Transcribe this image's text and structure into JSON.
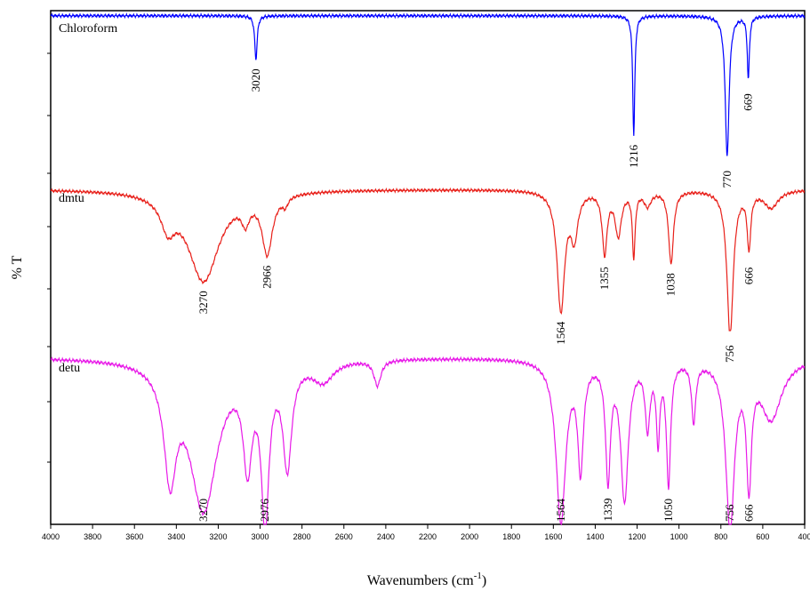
{
  "chart_data": {
    "type": "line",
    "xlabel": "Wavenumbers (cm",
    "xlabel_sup": "-1",
    "ylabel": "% T",
    "xlim": [
      4000,
      400
    ],
    "x_reversed": true,
    "x_ticks": [
      4000,
      3800,
      3600,
      3400,
      3200,
      3000,
      2800,
      2600,
      2400,
      2200,
      2000,
      1800,
      1600,
      1400,
      1200,
      1000,
      800,
      600,
      400
    ],
    "x_tick_labels": [
      "4000",
      "3800",
      "3600",
      "3400",
      "3200",
      "3000",
      "2800",
      "2600",
      "2400",
      "2200",
      "2000",
      "1800",
      "1600",
      "1400",
      "1200",
      "1000",
      "800",
      "600",
      "400"
    ],
    "grid": false,
    "series": [
      {
        "name": "Chloroform",
        "color": "#0000ff",
        "ylim": [
          0,
          100
        ],
        "baseline": 99,
        "peaks": [
          {
            "x": 3020,
            "depth": 28,
            "width": 7
          },
          {
            "x": 1216,
            "depth": 76,
            "width": 6
          },
          {
            "x": 770,
            "depth": 90,
            "width": 11
          },
          {
            "x": 669,
            "depth": 40,
            "width": 6
          }
        ],
        "annotations": [
          {
            "x": 3020,
            "label": "3020"
          },
          {
            "x": 1216,
            "label": "1216"
          },
          {
            "x": 770,
            "label": "770"
          },
          {
            "x": 669,
            "label": "669"
          }
        ]
      },
      {
        "name": "dmtu",
        "color": "#e8201a",
        "ylim": [
          0,
          100
        ],
        "baseline": 97,
        "peaks": [
          {
            "x": 3440,
            "depth": 20,
            "width": 40
          },
          {
            "x": 3270,
            "depth": 62,
            "width": 90
          },
          {
            "x": 3070,
            "depth": 14,
            "width": 22
          },
          {
            "x": 2966,
            "depth": 40,
            "width": 30
          },
          {
            "x": 2880,
            "depth": 6,
            "width": 15
          },
          {
            "x": 1564,
            "depth": 82,
            "width": 22
          },
          {
            "x": 1500,
            "depth": 30,
            "width": 20
          },
          {
            "x": 1355,
            "depth": 42,
            "width": 14
          },
          {
            "x": 1290,
            "depth": 30,
            "width": 18
          },
          {
            "x": 1216,
            "depth": 44,
            "width": 8
          },
          {
            "x": 1150,
            "depth": 10,
            "width": 20
          },
          {
            "x": 1038,
            "depth": 50,
            "width": 14
          },
          {
            "x": 756,
            "depth": 100,
            "width": 18
          },
          {
            "x": 666,
            "depth": 38,
            "width": 10
          },
          {
            "x": 560,
            "depth": 12,
            "width": 40
          }
        ],
        "annotations": [
          {
            "x": 3270,
            "label": "3270"
          },
          {
            "x": 2966,
            "label": "2966"
          },
          {
            "x": 1564,
            "label": "1564"
          },
          {
            "x": 1355,
            "label": "1355"
          },
          {
            "x": 1038,
            "label": "1038"
          },
          {
            "x": 756,
            "label": "756"
          },
          {
            "x": 666,
            "label": "666"
          }
        ]
      },
      {
        "name": "detu",
        "color": "#e81ae8",
        "ylim": [
          0,
          100
        ],
        "baseline": 99,
        "peaks": [
          {
            "x": 3430,
            "depth": 62,
            "width": 35
          },
          {
            "x": 3270,
            "depth": 88,
            "width": 80
          },
          {
            "x": 3060,
            "depth": 55,
            "width": 25
          },
          {
            "x": 2976,
            "depth": 90,
            "width": 22
          },
          {
            "x": 2870,
            "depth": 60,
            "width": 25
          },
          {
            "x": 2700,
            "depth": 12,
            "width": 60
          },
          {
            "x": 2440,
            "depth": 15,
            "width": 20
          },
          {
            "x": 1564,
            "depth": 96,
            "width": 28
          },
          {
            "x": 1470,
            "depth": 62,
            "width": 16
          },
          {
            "x": 1339,
            "depth": 68,
            "width": 14
          },
          {
            "x": 1260,
            "depth": 82,
            "width": 22
          },
          {
            "x": 1150,
            "depth": 38,
            "width": 14
          },
          {
            "x": 1100,
            "depth": 45,
            "width": 10
          },
          {
            "x": 1050,
            "depth": 72,
            "width": 12
          },
          {
            "x": 930,
            "depth": 35,
            "width": 12
          },
          {
            "x": 756,
            "depth": 98,
            "width": 25
          },
          {
            "x": 666,
            "depth": 68,
            "width": 14
          },
          {
            "x": 560,
            "depth": 35,
            "width": 60
          }
        ],
        "annotations": [
          {
            "x": 3270,
            "label": "3270"
          },
          {
            "x": 2976,
            "label": "2976"
          },
          {
            "x": 1564,
            "label": "1564"
          },
          {
            "x": 1339,
            "label": "1339"
          },
          {
            "x": 1050,
            "label": "1050"
          },
          {
            "x": 756,
            "label": "756"
          },
          {
            "x": 666,
            "label": "666"
          }
        ]
      }
    ]
  }
}
